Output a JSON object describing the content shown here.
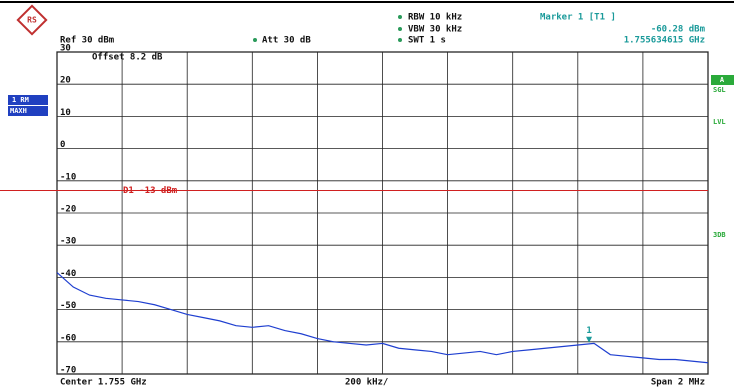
{
  "chart_data": {
    "type": "line",
    "header": {
      "rbw": "RBW 10 kHz",
      "vbw": "VBW 30 kHz",
      "swt": "SWT 1 s",
      "marker_title": "Marker 1 [T1 ]",
      "marker_level": "-60.28 dBm",
      "marker_freq": "1.755634615 GHz",
      "ref": "Ref 30 dBm",
      "att": "Att 30 dB",
      "offset": "Offset 8.2 dB"
    },
    "side_labels": {
      "trace": "1 RM",
      "detector": "MAXH",
      "a": "A",
      "sgl": "SGL",
      "lvl": "LVL",
      "db": "3DB"
    },
    "footer": {
      "center": "Center 1.755 GHz",
      "div": "200 kHz/",
      "span": "Span 2 MHz"
    },
    "x": [
      1.754,
      1.75405,
      1.7541,
      1.75415,
      1.7542,
      1.75425,
      1.7543,
      1.75435,
      1.7544,
      1.75445,
      1.7545,
      1.75455,
      1.7546,
      1.75465,
      1.7547,
      1.75475,
      1.7548,
      1.75485,
      1.7549,
      1.75495,
      1.755,
      1.75505,
      1.7551,
      1.75515,
      1.7552,
      1.75525,
      1.7553,
      1.75535,
      1.7554,
      1.75545,
      1.7555,
      1.75555,
      1.7556,
      1.75565,
      1.7557,
      1.75575,
      1.7558,
      1.75585,
      1.7559,
      1.75595,
      1.756
    ],
    "series": [
      {
        "name": "1 RM",
        "color": "#1f3fd0",
        "values": [
          -38.5,
          -43,
          -45.5,
          -46.5,
          -47,
          -47.5,
          -48.5,
          -50,
          -51.5,
          -52.5,
          -53.5,
          -55,
          -55.5,
          -55,
          -56.5,
          -57.5,
          -59,
          -60,
          -60.5,
          -61,
          -60.5,
          -62,
          -62.5,
          -63,
          -64,
          -63.5,
          -63,
          -64,
          -63,
          -62.5,
          -62,
          -61.5,
          -61,
          -60.5,
          -64,
          -64.5,
          -65,
          -65.5,
          -65.5,
          -66,
          -66.5
        ]
      }
    ],
    "marker": {
      "x": 1.755634615,
      "y": -60.28,
      "label": "1",
      "color": "#1a9a9a"
    },
    "display_line": {
      "value": -13,
      "label": "D1 -13 dBm",
      "color": "#d02020"
    },
    "xlim": [
      1.754,
      1.756
    ],
    "xticks": [
      1.754,
      1.7542,
      1.7544,
      1.7546,
      1.7548,
      1.755,
      1.7552,
      1.7554,
      1.7556,
      1.7558,
      1.756
    ],
    "ylim": [
      -70,
      30
    ],
    "yticks": [
      30,
      20,
      10,
      0,
      -10,
      -20,
      -30,
      -40,
      -50,
      -60,
      -70
    ],
    "grid": true
  }
}
